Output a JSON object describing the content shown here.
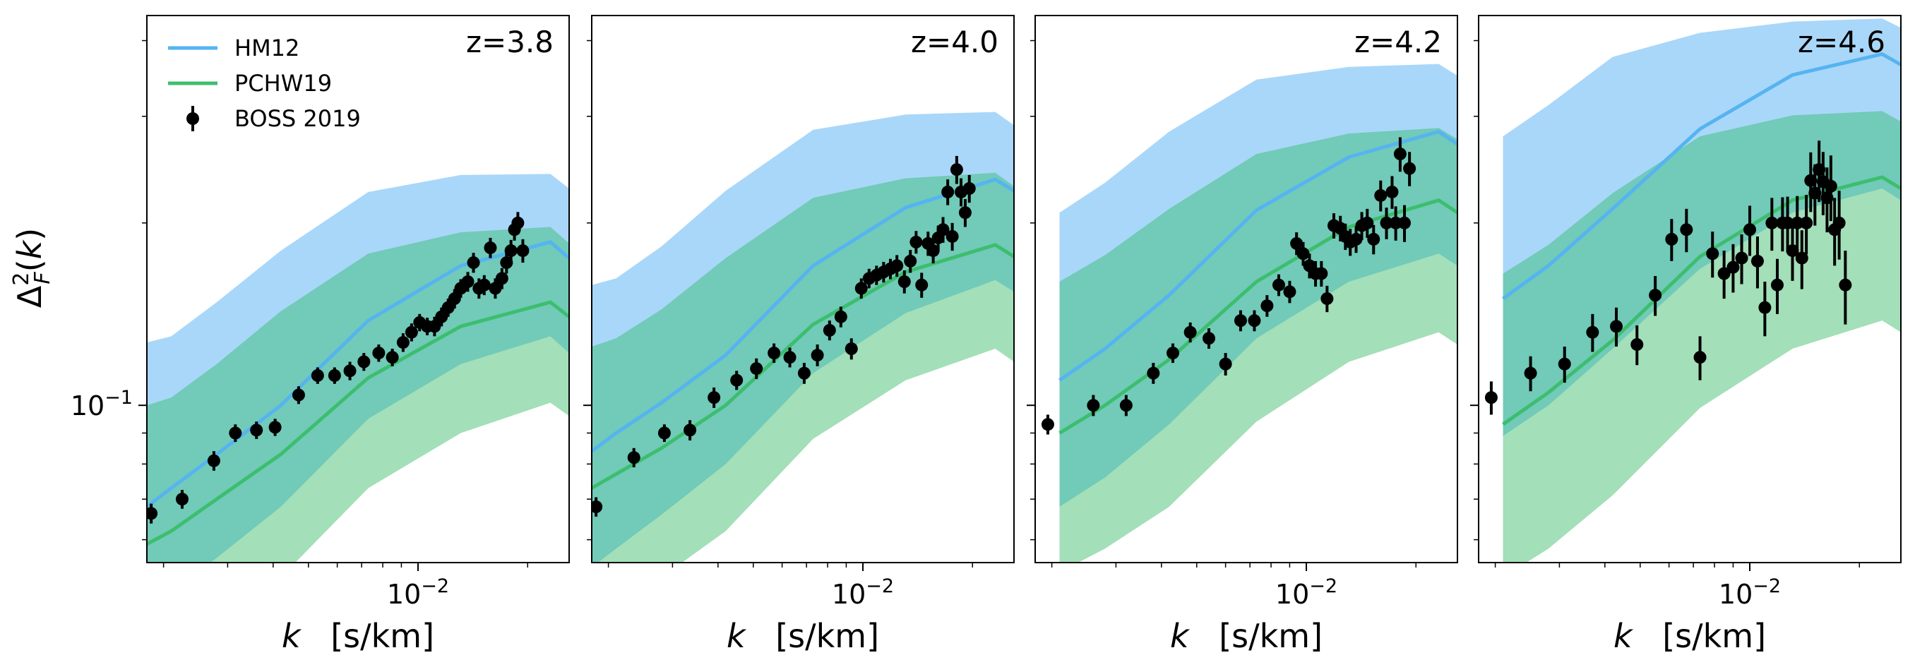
{
  "axes": {
    "xlabel_var": "k",
    "xlabel_unit": "[s/km]",
    "ylabel": "Δ²_F(k)",
    "xscale": "log",
    "yscale": "log",
    "xlim": [
      0.0018,
      0.026
    ],
    "ylim": [
      0.055,
      0.44
    ],
    "xtick_label": "10^-2",
    "ytick_label": "10^-1"
  },
  "legend": {
    "placement": "top-left",
    "entries": [
      {
        "label": "HM12",
        "kind": "line",
        "color": "#55b4f0"
      },
      {
        "label": "PCHW19",
        "kind": "line",
        "color": "#3cbe6e"
      },
      {
        "label": "BOSS 2019",
        "kind": "errorbar",
        "color": "#000000"
      }
    ]
  },
  "colors": {
    "hm12_line": "#55b4f0",
    "hm12_band": "#a9d7fa",
    "pchw19_line": "#3cbe6e",
    "pchw19_band": "#a3dfb8",
    "overlap_band": "#72cab8",
    "points": "#000000"
  },
  "chart_data": [
    {
      "type": "line",
      "title": "z=3.8",
      "k_model": [
        0.0018,
        0.0021,
        0.0028,
        0.0042,
        0.0073,
        0.0131,
        0.0231,
        0.026
      ],
      "hm12": {
        "mid": [
          0.068,
          0.073,
          0.083,
          0.1,
          0.138,
          0.17,
          0.186,
          0.175
        ],
        "lo": [
          0.045,
          0.049,
          0.056,
          0.068,
          0.095,
          0.117,
          0.13,
          0.122
        ],
        "hi": [
          0.127,
          0.13,
          0.148,
          0.18,
          0.225,
          0.24,
          0.241,
          0.228
        ]
      },
      "pchw19": {
        "mid": [
          0.059,
          0.062,
          0.07,
          0.083,
          0.111,
          0.135,
          0.148,
          0.14
        ],
        "lo": [
          0.037,
          0.039,
          0.043,
          0.052,
          0.073,
          0.09,
          0.101,
          0.096
        ],
        "hi": [
          0.1,
          0.103,
          0.117,
          0.143,
          0.178,
          0.193,
          0.197,
          0.185
        ]
      },
      "points": [
        {
          "k": 0.00185,
          "y": 0.0663,
          "e": 0.0025
        },
        {
          "k": 0.00225,
          "y": 0.07,
          "e": 0.0025
        },
        {
          "k": 0.00275,
          "y": 0.081,
          "e": 0.003
        },
        {
          "k": 0.00315,
          "y": 0.09,
          "e": 0.003
        },
        {
          "k": 0.0036,
          "y": 0.091,
          "e": 0.003
        },
        {
          "k": 0.00405,
          "y": 0.092,
          "e": 0.003
        },
        {
          "k": 0.0047,
          "y": 0.104,
          "e": 0.0035
        },
        {
          "k": 0.0053,
          "y": 0.112,
          "e": 0.0035
        },
        {
          "k": 0.0059,
          "y": 0.112,
          "e": 0.0035
        },
        {
          "k": 0.0065,
          "y": 0.114,
          "e": 0.004
        },
        {
          "k": 0.0071,
          "y": 0.118,
          "e": 0.004
        },
        {
          "k": 0.0078,
          "y": 0.122,
          "e": 0.004
        },
        {
          "k": 0.0085,
          "y": 0.12,
          "e": 0.004
        },
        {
          "k": 0.0091,
          "y": 0.127,
          "e": 0.0045
        },
        {
          "k": 0.0096,
          "y": 0.132,
          "e": 0.0045
        },
        {
          "k": 0.0101,
          "y": 0.137,
          "e": 0.0045
        },
        {
          "k": 0.0106,
          "y": 0.135,
          "e": 0.0045
        },
        {
          "k": 0.0111,
          "y": 0.135,
          "e": 0.005
        },
        {
          "k": 0.0116,
          "y": 0.14,
          "e": 0.005
        },
        {
          "k": 0.0121,
          "y": 0.145,
          "e": 0.005
        },
        {
          "k": 0.0126,
          "y": 0.15,
          "e": 0.0055
        },
        {
          "k": 0.0131,
          "y": 0.156,
          "e": 0.0055
        },
        {
          "k": 0.0137,
          "y": 0.16,
          "e": 0.006
        },
        {
          "k": 0.0142,
          "y": 0.172,
          "e": 0.0065
        },
        {
          "k": 0.0147,
          "y": 0.156,
          "e": 0.006
        },
        {
          "k": 0.0152,
          "y": 0.158,
          "e": 0.006
        },
        {
          "k": 0.0158,
          "y": 0.182,
          "e": 0.007
        },
        {
          "k": 0.0163,
          "y": 0.156,
          "e": 0.006
        },
        {
          "k": 0.017,
          "y": 0.162,
          "e": 0.0065
        },
        {
          "k": 0.0175,
          "y": 0.172,
          "e": 0.007
        },
        {
          "k": 0.018,
          "y": 0.18,
          "e": 0.0075
        },
        {
          "k": 0.0184,
          "y": 0.195,
          "e": 0.008
        },
        {
          "k": 0.0188,
          "y": 0.2,
          "e": 0.0085
        },
        {
          "k": 0.0194,
          "y": 0.18,
          "e": 0.008
        }
      ]
    },
    {
      "type": "line",
      "title": "z=4.0",
      "k_model": [
        0.0018,
        0.0021,
        0.0028,
        0.0042,
        0.0073,
        0.0131,
        0.0231,
        0.026
      ],
      "hm12": {
        "mid": [
          0.084,
          0.09,
          0.101,
          0.121,
          0.17,
          0.212,
          0.236,
          0.226
        ],
        "lo": [
          0.054,
          0.058,
          0.066,
          0.08,
          0.113,
          0.142,
          0.161,
          0.154
        ],
        "hi": [
          0.158,
          0.162,
          0.183,
          0.226,
          0.285,
          0.302,
          0.305,
          0.29
        ]
      },
      "pchw19": {
        "mid": [
          0.073,
          0.077,
          0.085,
          0.1,
          0.136,
          0.166,
          0.184,
          0.176
        ],
        "lo": [
          0.045,
          0.047,
          0.052,
          0.062,
          0.088,
          0.11,
          0.124,
          0.118
        ],
        "hi": [
          0.125,
          0.129,
          0.144,
          0.175,
          0.22,
          0.237,
          0.242,
          0.23
        ]
      },
      "points": [
        {
          "k": 0.00185,
          "y": 0.068,
          "e": 0.0025
        },
        {
          "k": 0.00235,
          "y": 0.082,
          "e": 0.003
        },
        {
          "k": 0.00285,
          "y": 0.09,
          "e": 0.003
        },
        {
          "k": 0.00335,
          "y": 0.091,
          "e": 0.0035
        },
        {
          "k": 0.0039,
          "y": 0.103,
          "e": 0.004
        },
        {
          "k": 0.0045,
          "y": 0.11,
          "e": 0.004
        },
        {
          "k": 0.0051,
          "y": 0.115,
          "e": 0.0045
        },
        {
          "k": 0.0057,
          "y": 0.122,
          "e": 0.0045
        },
        {
          "k": 0.0063,
          "y": 0.12,
          "e": 0.0045
        },
        {
          "k": 0.0069,
          "y": 0.113,
          "e": 0.0045
        },
        {
          "k": 0.0075,
          "y": 0.121,
          "e": 0.005
        },
        {
          "k": 0.0081,
          "y": 0.133,
          "e": 0.005
        },
        {
          "k": 0.0087,
          "y": 0.14,
          "e": 0.0055
        },
        {
          "k": 0.0093,
          "y": 0.124,
          "e": 0.005
        },
        {
          "k": 0.0099,
          "y": 0.156,
          "e": 0.006
        },
        {
          "k": 0.0104,
          "y": 0.162,
          "e": 0.006
        },
        {
          "k": 0.0109,
          "y": 0.164,
          "e": 0.006
        },
        {
          "k": 0.0114,
          "y": 0.166,
          "e": 0.0065
        },
        {
          "k": 0.0119,
          "y": 0.168,
          "e": 0.0065
        },
        {
          "k": 0.0124,
          "y": 0.17,
          "e": 0.007
        },
        {
          "k": 0.013,
          "y": 0.16,
          "e": 0.007
        },
        {
          "k": 0.0135,
          "y": 0.173,
          "e": 0.0075
        },
        {
          "k": 0.014,
          "y": 0.186,
          "e": 0.008
        },
        {
          "k": 0.0145,
          "y": 0.158,
          "e": 0.0075
        },
        {
          "k": 0.0151,
          "y": 0.185,
          "e": 0.0085
        },
        {
          "k": 0.0156,
          "y": 0.18,
          "e": 0.0085
        },
        {
          "k": 0.0161,
          "y": 0.189,
          "e": 0.009
        },
        {
          "k": 0.0166,
          "y": 0.195,
          "e": 0.0095
        },
        {
          "k": 0.0171,
          "y": 0.225,
          "e": 0.011
        },
        {
          "k": 0.0176,
          "y": 0.19,
          "e": 0.01
        },
        {
          "k": 0.0181,
          "y": 0.245,
          "e": 0.013
        },
        {
          "k": 0.0186,
          "y": 0.225,
          "e": 0.012
        },
        {
          "k": 0.0191,
          "y": 0.208,
          "e": 0.011
        },
        {
          "k": 0.0196,
          "y": 0.228,
          "e": 0.012
        }
      ]
    },
    {
      "type": "line",
      "title": "z=4.2",
      "k_model": [
        0.0021,
        0.0028,
        0.0042,
        0.0073,
        0.0131,
        0.0231,
        0.026
      ],
      "hm12": {
        "mid": [
          0.11,
          0.124,
          0.152,
          0.21,
          0.257,
          0.283,
          0.27
        ],
        "lo": [
          0.068,
          0.076,
          0.093,
          0.129,
          0.16,
          0.178,
          0.17
        ],
        "hi": [
          0.208,
          0.233,
          0.283,
          0.345,
          0.362,
          0.366,
          0.35
        ]
      },
      "pchw19": {
        "mid": [
          0.09,
          0.1,
          0.119,
          0.16,
          0.197,
          0.218,
          0.208
        ],
        "lo": [
          0.053,
          0.058,
          0.068,
          0.094,
          0.118,
          0.132,
          0.126
        ],
        "hi": [
          0.16,
          0.177,
          0.211,
          0.26,
          0.281,
          0.287,
          0.275
        ]
      },
      "points": [
        {
          "k": 0.00195,
          "y": 0.093,
          "e": 0.0035
        },
        {
          "k": 0.0026,
          "y": 0.1,
          "e": 0.004
        },
        {
          "k": 0.0032,
          "y": 0.1,
          "e": 0.004
        },
        {
          "k": 0.0038,
          "y": 0.113,
          "e": 0.0045
        },
        {
          "k": 0.0043,
          "y": 0.122,
          "e": 0.0045
        },
        {
          "k": 0.0048,
          "y": 0.132,
          "e": 0.005
        },
        {
          "k": 0.0054,
          "y": 0.129,
          "e": 0.005
        },
        {
          "k": 0.006,
          "y": 0.117,
          "e": 0.005
        },
        {
          "k": 0.0066,
          "y": 0.138,
          "e": 0.0055
        },
        {
          "k": 0.0072,
          "y": 0.138,
          "e": 0.0055
        },
        {
          "k": 0.0078,
          "y": 0.146,
          "e": 0.006
        },
        {
          "k": 0.0084,
          "y": 0.158,
          "e": 0.0065
        },
        {
          "k": 0.009,
          "y": 0.154,
          "e": 0.0065
        },
        {
          "k": 0.0094,
          "y": 0.185,
          "e": 0.008
        },
        {
          "k": 0.0098,
          "y": 0.178,
          "e": 0.008
        },
        {
          "k": 0.0102,
          "y": 0.17,
          "e": 0.008
        },
        {
          "k": 0.0106,
          "y": 0.165,
          "e": 0.008
        },
        {
          "k": 0.011,
          "y": 0.165,
          "e": 0.008
        },
        {
          "k": 0.0114,
          "y": 0.15,
          "e": 0.0075
        },
        {
          "k": 0.0119,
          "y": 0.198,
          "e": 0.0095
        },
        {
          "k": 0.0124,
          "y": 0.196,
          "e": 0.0095
        },
        {
          "k": 0.0128,
          "y": 0.19,
          "e": 0.0095
        },
        {
          "k": 0.0132,
          "y": 0.186,
          "e": 0.0095
        },
        {
          "k": 0.0137,
          "y": 0.188,
          "e": 0.0095
        },
        {
          "k": 0.0142,
          "y": 0.198,
          "e": 0.0105
        },
        {
          "k": 0.0147,
          "y": 0.2,
          "e": 0.011
        },
        {
          "k": 0.0153,
          "y": 0.188,
          "e": 0.0105
        },
        {
          "k": 0.016,
          "y": 0.222,
          "e": 0.013
        },
        {
          "k": 0.0166,
          "y": 0.2,
          "e": 0.012
        },
        {
          "k": 0.0172,
          "y": 0.225,
          "e": 0.014
        },
        {
          "k": 0.0176,
          "y": 0.2,
          "e": 0.013
        },
        {
          "k": 0.0181,
          "y": 0.26,
          "e": 0.017
        },
        {
          "k": 0.0186,
          "y": 0.2,
          "e": 0.014
        },
        {
          "k": 0.0192,
          "y": 0.246,
          "e": 0.016
        }
      ]
    },
    {
      "type": "line",
      "title": "z=4.6",
      "k_model": [
        0.0021,
        0.0028,
        0.0042,
        0.0073,
        0.0131,
        0.0231,
        0.026
      ],
      "hm12": {
        "mid": [
          0.15,
          0.17,
          0.211,
          0.286,
          0.351,
          0.38,
          0.365
        ],
        "lo": [
          0.089,
          0.1,
          0.124,
          0.168,
          0.208,
          0.228,
          0.218
        ],
        "hi": [
          0.278,
          0.313,
          0.376,
          0.412,
          0.43,
          0.435,
          0.42
        ]
      },
      "pchw19": {
        "mid": [
          0.093,
          0.105,
          0.128,
          0.176,
          0.218,
          0.238,
          0.228
        ],
        "lo": [
          0.052,
          0.058,
          0.071,
          0.099,
          0.124,
          0.138,
          0.132
        ],
        "hi": [
          0.165,
          0.184,
          0.224,
          0.278,
          0.301,
          0.306,
          0.294
        ]
      },
      "points": [
        {
          "k": 0.00195,
          "y": 0.103,
          "e": 0.0065
        },
        {
          "k": 0.0025,
          "y": 0.113,
          "e": 0.0075
        },
        {
          "k": 0.0031,
          "y": 0.117,
          "e": 0.008
        },
        {
          "k": 0.0037,
          "y": 0.132,
          "e": 0.0095
        },
        {
          "k": 0.0043,
          "y": 0.135,
          "e": 0.01
        },
        {
          "k": 0.0049,
          "y": 0.126,
          "e": 0.0095
        },
        {
          "k": 0.0055,
          "y": 0.152,
          "e": 0.0115
        },
        {
          "k": 0.0061,
          "y": 0.188,
          "e": 0.015
        },
        {
          "k": 0.0067,
          "y": 0.195,
          "e": 0.016
        },
        {
          "k": 0.0073,
          "y": 0.12,
          "e": 0.01
        },
        {
          "k": 0.0079,
          "y": 0.178,
          "e": 0.0155
        },
        {
          "k": 0.0085,
          "y": 0.165,
          "e": 0.015
        },
        {
          "k": 0.009,
          "y": 0.169,
          "e": 0.0155
        },
        {
          "k": 0.0095,
          "y": 0.175,
          "e": 0.0165
        },
        {
          "k": 0.01,
          "y": 0.195,
          "e": 0.0185
        },
        {
          "k": 0.0105,
          "y": 0.173,
          "e": 0.017
        },
        {
          "k": 0.011,
          "y": 0.145,
          "e": 0.015
        },
        {
          "k": 0.0115,
          "y": 0.2,
          "e": 0.02
        },
        {
          "k": 0.0119,
          "y": 0.158,
          "e": 0.0165
        },
        {
          "k": 0.0123,
          "y": 0.2,
          "e": 0.0205
        },
        {
          "k": 0.0127,
          "y": 0.2,
          "e": 0.021
        },
        {
          "k": 0.0131,
          "y": 0.18,
          "e": 0.0195
        },
        {
          "k": 0.0135,
          "y": 0.2,
          "e": 0.0215
        },
        {
          "k": 0.0139,
          "y": 0.175,
          "e": 0.0195
        },
        {
          "k": 0.0143,
          "y": 0.2,
          "e": 0.0225
        },
        {
          "k": 0.0147,
          "y": 0.235,
          "e": 0.0265
        },
        {
          "k": 0.0151,
          "y": 0.224,
          "e": 0.026
        },
        {
          "k": 0.0155,
          "y": 0.245,
          "e": 0.0285
        },
        {
          "k": 0.0159,
          "y": 0.234,
          "e": 0.028
        },
        {
          "k": 0.0163,
          "y": 0.22,
          "e": 0.027
        },
        {
          "k": 0.0167,
          "y": 0.23,
          "e": 0.0285
        },
        {
          "k": 0.0171,
          "y": 0.195,
          "e": 0.025
        },
        {
          "k": 0.0176,
          "y": 0.2,
          "e": 0.026
        },
        {
          "k": 0.0183,
          "y": 0.158,
          "e": 0.022
        }
      ]
    }
  ]
}
